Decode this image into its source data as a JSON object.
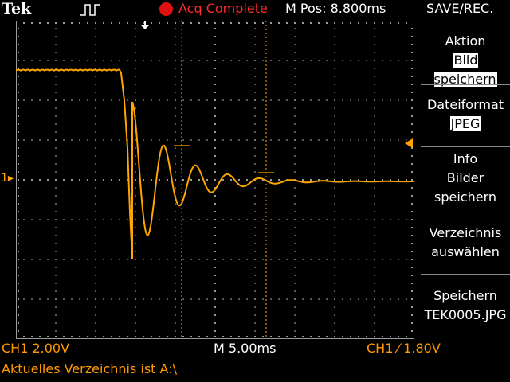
{
  "header": {
    "brand": "Tek",
    "acq_status": "Acq Complete",
    "m_pos": "M Pos: 8.800ms",
    "menu_title": "SAVE/REC."
  },
  "menu": {
    "action_title": "Aktion",
    "action_value": "Bild speichern",
    "format_title": "Dateiformat",
    "format_value": "JPEG",
    "info_line1": "Info",
    "info_line2": "Bilder",
    "info_line3": "speichern",
    "dir_line1": "Verzeichnis",
    "dir_line2": "auswählen",
    "save_line1": "Speichern",
    "save_line2": "TEK0005.JPG"
  },
  "status": {
    "ch1_scale": "CH1  2.00V",
    "timebase": "M 5.00ms",
    "trigger": "CH1  ⁄  1.80V",
    "directory": "Aktuelles Verzeichnis ist A:\\"
  },
  "channel_marker": "1",
  "colors": {
    "trace": "#ffa500",
    "acq_red": "#e01010",
    "grid": "#aaaaaa"
  },
  "icons": {
    "trigger_pulse": "pulse-icon",
    "trigger_position": "down-arrow-icon",
    "trigger_level": "left-arrow-icon"
  }
}
